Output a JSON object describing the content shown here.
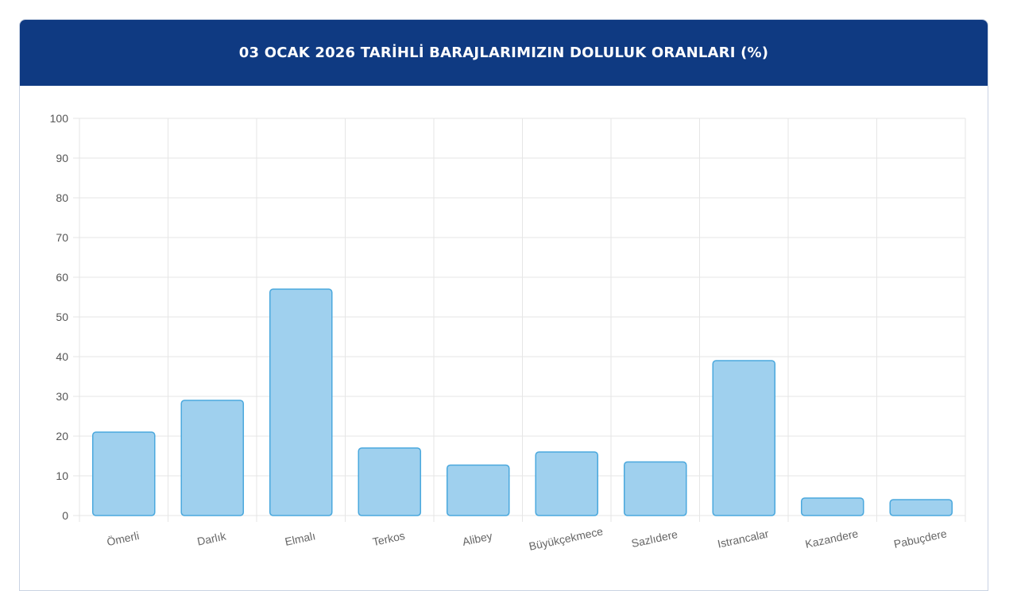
{
  "header": {
    "title": "03 OCAK 2026 TARİHLİ BARAJLARIMIZIN DOLULUK ORANLARI (%)"
  },
  "colors": {
    "header_bg": "#0f3a82",
    "bar_fill": "#9fd0ee",
    "bar_stroke": "#4aa8dd",
    "grid": "#e6e6e6"
  },
  "chart_data": {
    "type": "bar",
    "title": "03 OCAK 2026 TARİHLİ BARAJLARIMIZIN DOLULUK ORANLARI (%)",
    "categories": [
      "Ömerli",
      "Darlık",
      "Elmalı",
      "Terkos",
      "Alibey",
      "Büyükçekmece",
      "Sazlıdere",
      "Istrancalar",
      "Kazandere",
      "Pabuçdere"
    ],
    "values": [
      21,
      29,
      57,
      17,
      12.7,
      16,
      13.5,
      39,
      4.4,
      4
    ],
    "ylim": [
      0,
      100
    ],
    "yticks": [
      0,
      10,
      20,
      30,
      40,
      50,
      60,
      70,
      80,
      90,
      100
    ],
    "xlabel": "",
    "ylabel": "",
    "grid": true,
    "legend": "none"
  }
}
